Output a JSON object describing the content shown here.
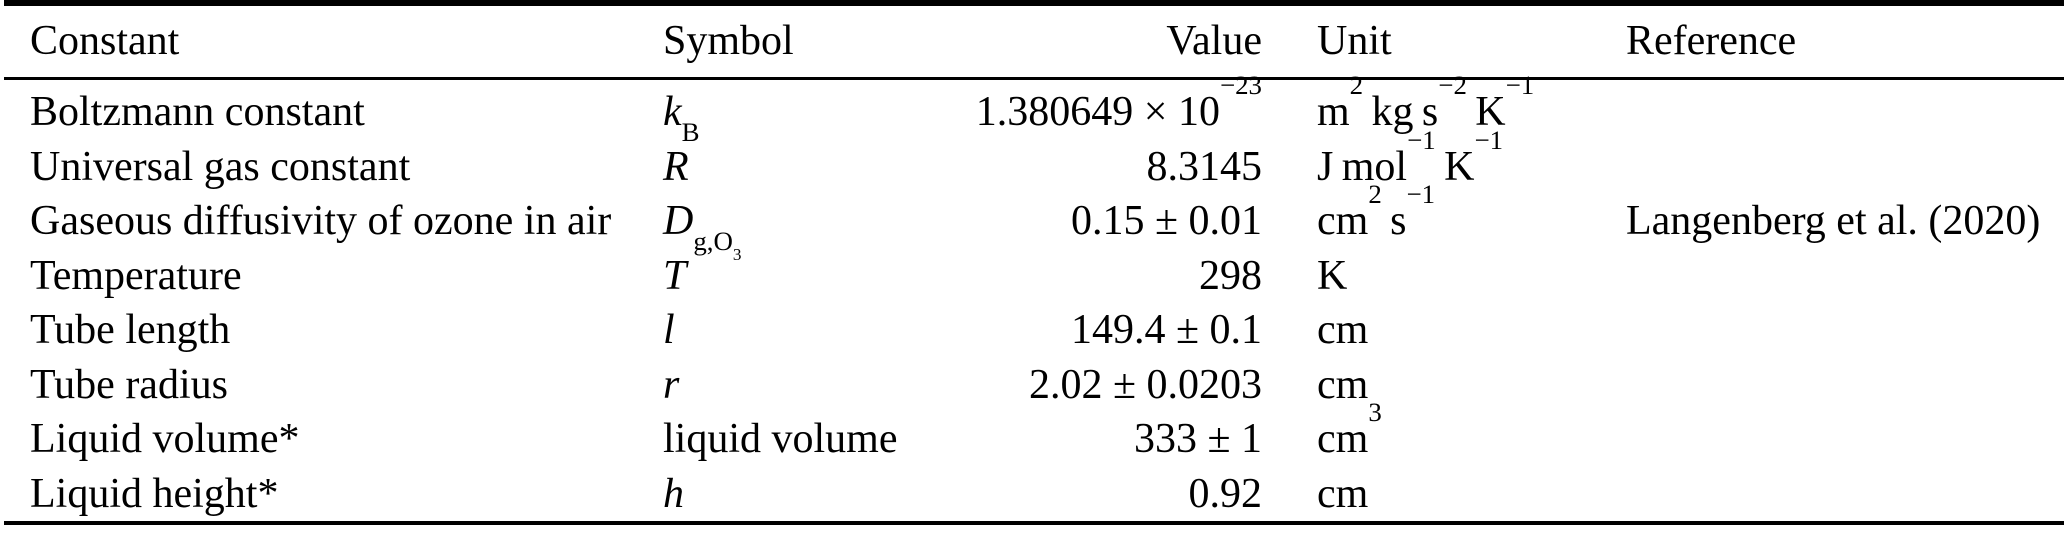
{
  "colors": {
    "text": "#000000",
    "background": "#ffffff",
    "rule": "#000000"
  },
  "table": {
    "columns": [
      "Constant",
      "Symbol",
      "Value",
      "Unit",
      "Reference"
    ],
    "rows": [
      {
        "constant": "Boltzmann constant",
        "symbol": "//k//_{B}",
        "value": "1.380649 × 10^{−23}",
        "unit": "m^{2} kg s^{−2} K^{−1}",
        "reference": ""
      },
      {
        "constant": "Universal gas constant",
        "symbol": "//R//",
        "value": "8.3145",
        "unit": "J mol^{−1} K^{−1}",
        "reference": ""
      },
      {
        "constant": "Gaseous diffusivity of ozone in air",
        "symbol": "//D//_{g,O_{3}}",
        "value": "0.15 ± 0.01",
        "unit": "cm^{2} s^{−1}",
        "reference": "Langenberg et al. (2020)"
      },
      {
        "constant": "Temperature",
        "symbol": "//T//",
        "value": "298",
        "unit": "K",
        "reference": ""
      },
      {
        "constant": "Tube length",
        "symbol": "//l//",
        "value": "149.4 ± 0.1",
        "unit": "cm",
        "reference": ""
      },
      {
        "constant": "Tube radius",
        "symbol": "//r//",
        "value": "2.02 ± 0.0203",
        "unit": "cm",
        "reference": ""
      },
      {
        "constant": "Liquid volume*",
        "symbol": "liquid volume",
        "value": "333 ± 1",
        "unit": "cm^{3}",
        "reference": ""
      },
      {
        "constant": "Liquid height*",
        "symbol": "//h//",
        "value": "0.92",
        "unit": "cm",
        "reference": ""
      }
    ]
  }
}
